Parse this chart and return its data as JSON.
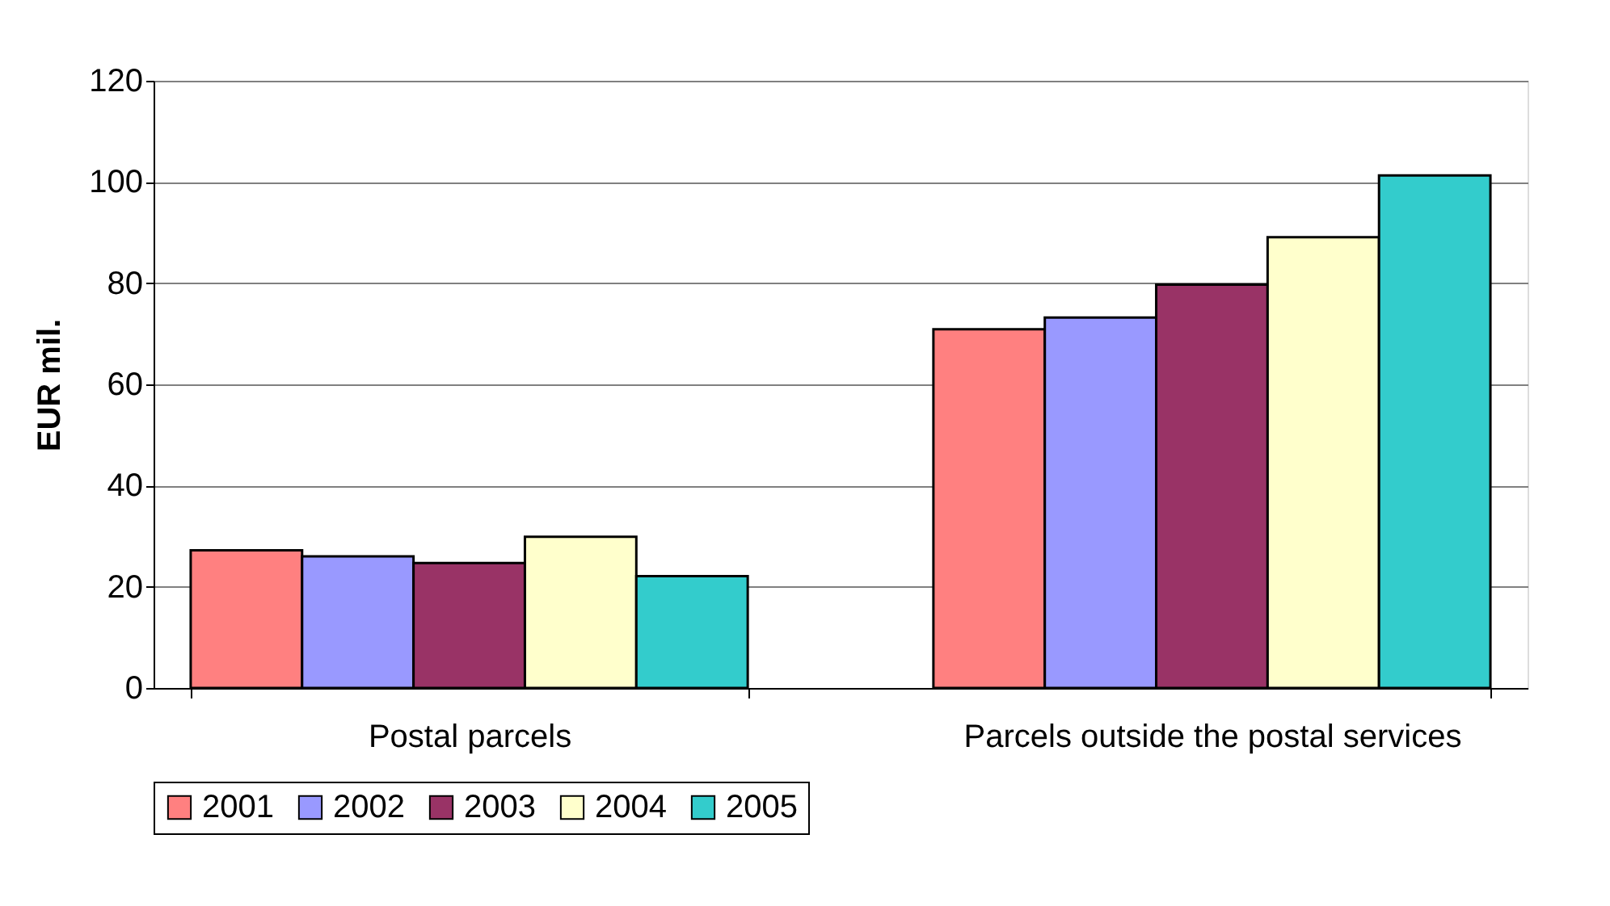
{
  "chart_data": {
    "type": "bar",
    "ylabel": "EUR mil.",
    "categories": [
      "Postal parcels",
      "Parcels outside the postal services"
    ],
    "series": [
      {
        "name": "2001",
        "color": "#ff8080",
        "values": [
          27.2,
          70.9
        ]
      },
      {
        "name": "2002",
        "color": "#9999ff",
        "values": [
          26.0,
          73.2
        ]
      },
      {
        "name": "2003",
        "color": "#993366",
        "values": [
          24.7,
          79.7
        ]
      },
      {
        "name": "2004",
        "color": "#ffffcc",
        "values": [
          29.9,
          89.1
        ]
      },
      {
        "name": "2005",
        "color": "#33cccc",
        "values": [
          22.1,
          101.3
        ]
      }
    ],
    "ylim": [
      0,
      120
    ],
    "yticks": [
      0,
      20,
      40,
      60,
      80,
      100,
      120
    ],
    "grid": "y",
    "legend": "bottom"
  }
}
